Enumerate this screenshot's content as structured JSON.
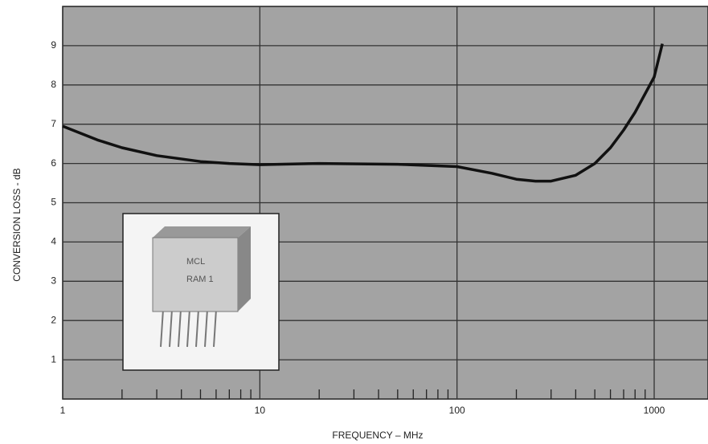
{
  "chart_data": {
    "type": "line",
    "x_label": "FREQUENCY – MHz",
    "y_label": "CONVERSION LOSS - dB",
    "log_x": true,
    "grid": true,
    "xlim": [
      1,
      1875
    ],
    "xticks": [
      1,
      10,
      100,
      1000
    ],
    "x_minor_ticks": [
      2,
      3,
      4,
      5,
      6,
      7,
      8,
      9,
      20,
      30,
      40,
      50,
      60,
      70,
      80,
      90,
      200,
      300,
      400,
      500,
      600,
      700,
      800,
      900
    ],
    "ylim": [
      0,
      10
    ],
    "yticks": [
      1,
      2,
      3,
      4,
      5,
      6,
      7,
      8,
      9
    ],
    "series": [
      {
        "color": "#111111",
        "x": [
          1,
          1.5,
          2,
          3,
          5,
          7,
          10,
          20,
          50,
          100,
          150,
          200,
          250,
          300,
          400,
          500,
          600,
          700,
          800,
          1000,
          1100
        ],
        "values": [
          6.95,
          6.6,
          6.4,
          6.2,
          6.05,
          6.0,
          5.97,
          6.0,
          5.98,
          5.92,
          5.75,
          5.6,
          5.55,
          5.55,
          5.7,
          6.0,
          6.4,
          6.85,
          7.3,
          8.2,
          9.05
        ]
      }
    ],
    "inset_labels": [
      "MCL",
      "RAM 1"
    ]
  }
}
